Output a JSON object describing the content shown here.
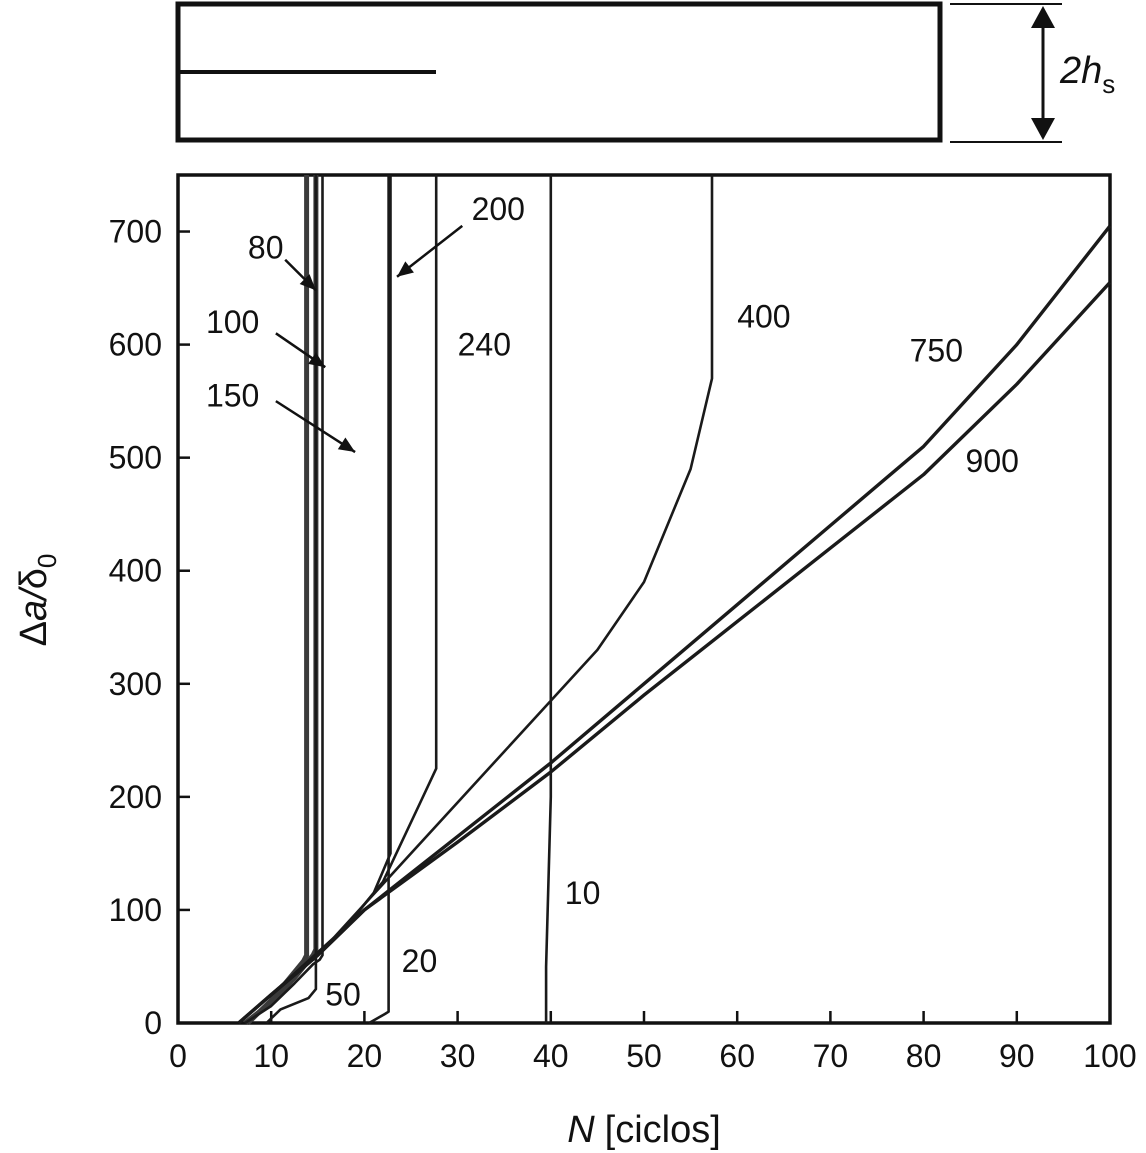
{
  "beam": {
    "dimension_label": "2h",
    "dimension_subscript": "s"
  },
  "chart_data": {
    "type": "line",
    "xlabel_var": "N",
    "xlabel_unit": "[ciclos]",
    "ylabel_delta": "Δ",
    "ylabel_var": "a",
    "ylabel_sep": "/",
    "ylabel_delta0": "δ",
    "ylabel_sub": "0",
    "xlim": [
      0,
      100
    ],
    "ylim": [
      0,
      750
    ],
    "xticks": [
      0,
      10,
      20,
      30,
      40,
      50,
      60,
      70,
      80,
      90,
      100
    ],
    "yticks": [
      0,
      100,
      200,
      300,
      400,
      500,
      600,
      700
    ],
    "grid": false,
    "series": [
      {
        "name": "80",
        "x": [
          7.5,
          10,
          12,
          13.5,
          13.8,
          13.8
        ],
        "y": [
          0,
          20,
          40,
          55,
          60,
          750
        ]
      },
      {
        "name": "100",
        "x": [
          7.2,
          10,
          12.5,
          14.5,
          14.8,
          14.8
        ],
        "y": [
          0,
          18,
          40,
          60,
          65,
          750
        ]
      },
      {
        "name": "150",
        "x": [
          7.2,
          10,
          12.5,
          14.5,
          15.2,
          15.5,
          15.5
        ],
        "y": [
          0,
          15,
          35,
          52,
          56,
          60,
          750
        ]
      },
      {
        "name": "200",
        "x": [
          6.5,
          10,
          14,
          18,
          21,
          22.8,
          22.8
        ],
        "y": [
          0,
          25,
          55,
          85,
          115,
          150,
          750
        ]
      },
      {
        "name": "240",
        "x": [
          6.5,
          10,
          14,
          18,
          22,
          26,
          27.7,
          27.7
        ],
        "y": [
          0,
          25,
          55,
          85,
          125,
          195,
          225,
          750
        ]
      },
      {
        "name": "400",
        "x": [
          6.5,
          10,
          15,
          20,
          25,
          30,
          35,
          40,
          45,
          50,
          55,
          57.3,
          57.3
        ],
        "y": [
          0,
          25,
          60,
          105,
          150,
          195,
          240,
          285,
          330,
          390,
          490,
          570,
          750
        ]
      },
      {
        "name": "750",
        "x": [
          6.5,
          10,
          15,
          20,
          30,
          40,
          50,
          60,
          70,
          80,
          90,
          100
        ],
        "y": [
          0,
          25,
          60,
          100,
          165,
          230,
          300,
          370,
          440,
          510,
          600,
          705
        ]
      },
      {
        "name": "900",
        "x": [
          6.5,
          10,
          15,
          20,
          30,
          40,
          50,
          60,
          70,
          80,
          90,
          100
        ],
        "y": [
          0,
          25,
          60,
          100,
          160,
          222,
          290,
          355,
          420,
          485,
          565,
          655
        ]
      },
      {
        "name": "50",
        "x": [
          9.5,
          11,
          14,
          14.8,
          14.8
        ],
        "y": [
          0,
          12,
          22,
          30,
          750
        ]
      },
      {
        "name": "20",
        "x": [
          20.5,
          22.2,
          22.6,
          22.6
        ],
        "y": [
          0,
          8,
          10,
          750
        ]
      },
      {
        "name": "10",
        "x": [
          39.5,
          39.5,
          40,
          40
        ],
        "y": [
          0,
          50,
          200,
          750
        ]
      }
    ],
    "curve_labels": [
      {
        "text": "80",
        "x": 7.5,
        "y": 686
      },
      {
        "text": "100",
        "x": 3.0,
        "y": 620
      },
      {
        "text": "150",
        "x": 3.0,
        "y": 555
      },
      {
        "text": "200",
        "x": 31.5,
        "y": 720
      },
      {
        "text": "240",
        "x": 30.0,
        "y": 600
      },
      {
        "text": "400",
        "x": 60.0,
        "y": 625
      },
      {
        "text": "750",
        "x": 78.5,
        "y": 595
      },
      {
        "text": "900",
        "x": 84.5,
        "y": 497
      },
      {
        "text": "10",
        "x": 41.5,
        "y": 115
      },
      {
        "text": "20",
        "x": 24.0,
        "y": 55
      },
      {
        "text": "50",
        "x": 15.8,
        "y": 25
      }
    ],
    "arrows": [
      {
        "from": [
          11.5,
          675
        ],
        "to": [
          14.8,
          648
        ]
      },
      {
        "from": [
          10.5,
          610
        ],
        "to": [
          15.8,
          580
        ]
      },
      {
        "from": [
          10.5,
          550
        ],
        "to": [
          19.0,
          505
        ]
      },
      {
        "from": [
          30.5,
          705
        ],
        "to": [
          23.5,
          660
        ]
      }
    ]
  }
}
